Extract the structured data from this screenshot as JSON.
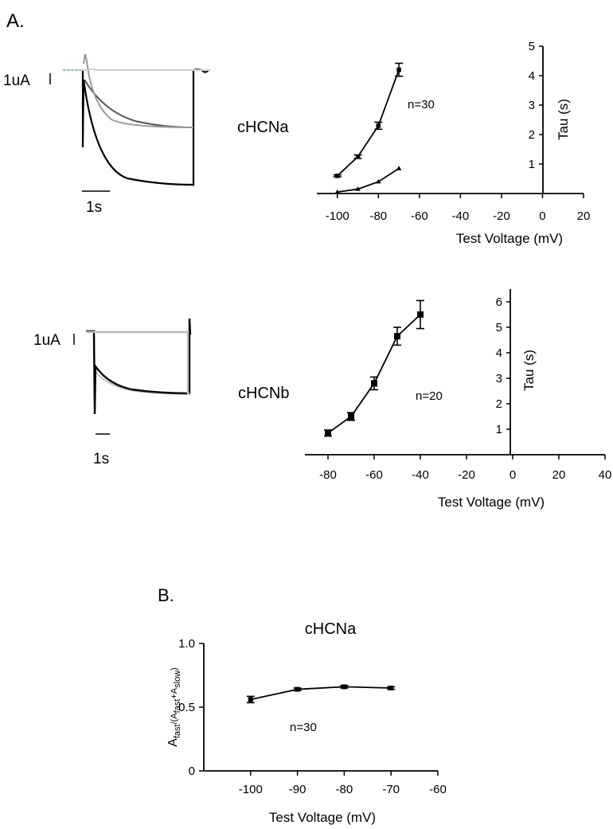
{
  "panel_labels": {
    "a": "A.",
    "b": "B."
  },
  "traces": {
    "a": {
      "label": "cHCNa",
      "scale_current": "1uA",
      "scale_time": "1s",
      "colors": [
        "#000000",
        "#555555",
        "#9a9a9a",
        "#cfcfcf"
      ]
    },
    "b": {
      "label": "cHCNb",
      "scale_current": "1uA",
      "scale_time": "1s",
      "colors": [
        "#000000",
        "#666666",
        "#bdbdbd"
      ]
    }
  },
  "chart_data": [
    {
      "id": "tau-a",
      "type": "line",
      "xlabel": "Test Voltage (mV)",
      "ylabel": "Tau (s)",
      "annotation": "n=30",
      "xlim": [
        -110,
        20
      ],
      "ylim": [
        0,
        5
      ],
      "xticks": [
        -100,
        -80,
        -60,
        -40,
        -20,
        0,
        20
      ],
      "yticks": [
        1,
        2,
        3,
        4,
        5
      ],
      "series": [
        {
          "marker": "square",
          "x": [
            -100,
            -90,
            -80,
            -70
          ],
          "y": [
            0.6,
            1.25,
            2.3,
            4.2
          ],
          "err": [
            0.03,
            0.06,
            0.12,
            0.22
          ]
        },
        {
          "marker": "triangle",
          "x": [
            -100,
            -90,
            -80,
            -70
          ],
          "y": [
            0.05,
            0.15,
            0.4,
            0.85
          ],
          "err": [
            0,
            0,
            0,
            0
          ]
        }
      ]
    },
    {
      "id": "tau-b",
      "type": "line",
      "xlabel": "Test Voltage (mV)",
      "ylabel": "Tau (s)",
      "annotation": "n=20",
      "xlim": [
        -90,
        40
      ],
      "ylim": [
        0,
        6.5
      ],
      "xticks": [
        -80,
        -60,
        -40,
        -20,
        0,
        20,
        40
      ],
      "yticks": [
        1,
        2,
        3,
        4,
        5,
        6
      ],
      "series": [
        {
          "marker": "square",
          "x": [
            -80,
            -70,
            -60,
            -50,
            -40
          ],
          "y": [
            0.85,
            1.5,
            2.8,
            4.65,
            5.5
          ],
          "err": [
            0.12,
            0.15,
            0.25,
            0.35,
            0.55
          ]
        }
      ]
    },
    {
      "id": "afast-b",
      "type": "line",
      "title": "cHCNa",
      "xlabel": "Test Voltage (mV)",
      "ylabel": "Afast/(Afast+Aslow)",
      "ylabel_parts": {
        "a1": "A",
        "fast1": "fast",
        "mid": "/(A",
        "fast2": "fast",
        "plus": "+A",
        "slow": "slow",
        "close": ")"
      },
      "annotation": "n=30",
      "xlim": [
        -110,
        -60
      ],
      "ylim": [
        0,
        1.0
      ],
      "xticks": [
        -100,
        -90,
        -80,
        -70,
        -60
      ],
      "yticks": [
        0,
        0.5,
        1.0
      ],
      "ytick_labels": [
        "0",
        "0.5",
        "1.0"
      ],
      "series": [
        {
          "marker": "square",
          "x": [
            -100,
            -90,
            -80,
            -70
          ],
          "y": [
            0.56,
            0.64,
            0.66,
            0.65
          ],
          "err": [
            0.025,
            0.01,
            0.01,
            0.01
          ]
        }
      ]
    }
  ]
}
